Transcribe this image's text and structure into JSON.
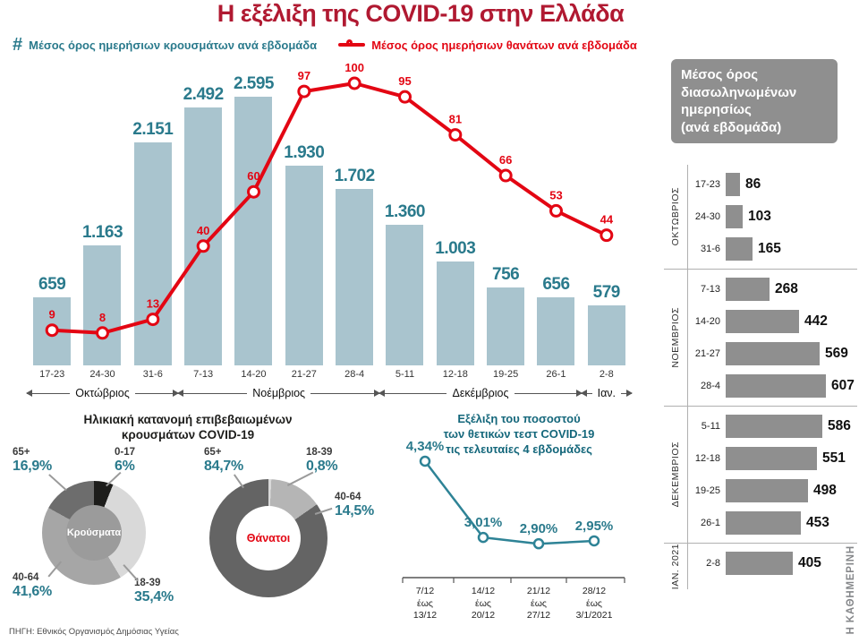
{
  "title": "Η εξέλιξη της COVID-19 στην Ελλάδα",
  "legend": {
    "cases_symbol": "#"
  },
  "source": "ΠΗΓΗ: Εθνικός Οργανισμός Δημόσιας Υγείας",
  "brand": "Η ΚΑΘΗΜΕΡΙΝΗ",
  "colors": {
    "title_red": "#b01931",
    "teal": "#2a7a8c",
    "line_red": "#e30613",
    "bar_fill": "#a9c4ce",
    "panel_gray": "#8f8f8f",
    "dark": "#1d1d1b"
  },
  "chart_data": [
    {
      "type": "bar",
      "name": "weekly-cases-and-deaths",
      "categories": [
        "17-23",
        "24-30",
        "31-6",
        "7-13",
        "14-20",
        "21-27",
        "28-4",
        "5-11",
        "12-18",
        "19-25",
        "26-1",
        "2-8"
      ],
      "series": [
        {
          "name": "cases",
          "type": "bar",
          "title": "Μέσος όρος ημερήσιων κρουσμάτων ανά εβδομάδα",
          "values": [
            659,
            1163,
            2151,
            2492,
            2595,
            1930,
            1702,
            1360,
            1003,
            756,
            656,
            579
          ],
          "value_labels": [
            "659",
            "1.163",
            "2.151",
            "2.492",
            "2.595",
            "1.930",
            "1.702",
            "1.360",
            "1.003",
            "756",
            "656",
            "579"
          ],
          "ylim": [
            0,
            2700
          ]
        },
        {
          "name": "deaths",
          "type": "line",
          "title": "Μέσος όρος ημερήσιων θανάτων ανά εβδομάδα",
          "values": [
            9,
            8,
            13,
            40,
            60,
            97,
            100,
            95,
            81,
            66,
            53,
            44
          ],
          "ylim": [
            0,
            110
          ]
        }
      ],
      "months": [
        {
          "label": "Οκτώβριος",
          "span": 3
        },
        {
          "label": "Νοέμβριος",
          "span": 4
        },
        {
          "label": "Δεκέμβριος",
          "span": 4
        },
        {
          "label": "Ιαν.",
          "span": 1
        }
      ],
      "grid": false,
      "legend_position": "top"
    },
    {
      "type": "pie",
      "name": "age-distribution-cases",
      "title": "Ηλικιακή κατανομή επιβεβαιωμένων\nκρουσμάτων COVID-19",
      "center_label": "Κρούσματα",
      "segments": [
        {
          "group": "0-17",
          "pct": "6%",
          "value": 6,
          "color": "#1d1d1b"
        },
        {
          "group": "18-39",
          "pct": "35,4%",
          "value": 35.4,
          "color": "#d9d9d9"
        },
        {
          "group": "40-64",
          "pct": "41,6%",
          "value": 41.6,
          "color": "#a6a6a6"
        },
        {
          "group": "65+",
          "pct": "16,9%",
          "value": 16.9,
          "color": "#6d6d6d"
        }
      ]
    },
    {
      "type": "pie",
      "name": "age-distribution-deaths",
      "center_label": "Θάνατοι",
      "segments": [
        {
          "group": "18-39",
          "pct": "0,8%",
          "value": 0.8,
          "color": "#d9d9d9"
        },
        {
          "group": "40-64",
          "pct": "14,5%",
          "value": 14.5,
          "color": "#b5b5b5"
        },
        {
          "group": "65+",
          "pct": "84,7%",
          "value": 84.7,
          "color": "#646464"
        }
      ]
    },
    {
      "type": "line",
      "name": "test-positivity",
      "title": "Εξέλιξη του ποσοστού\nτων θετικών τεστ COVID-19\nτις τελευταίες 4 εβδομάδες",
      "ylim": [
        2.5,
        4.5
      ],
      "points": [
        {
          "label": "4,34%",
          "value": 4.34,
          "x_label": "7/12\nέως\n13/12"
        },
        {
          "label": "3,01%",
          "value": 3.01,
          "x_label": "14/12\nέως\n20/12"
        },
        {
          "label": "2,90%",
          "value": 2.9,
          "x_label": "21/12\nέως\n27/12"
        },
        {
          "label": "2,95%",
          "value": 2.95,
          "x_label": "28/12\nέως\n3/1/2021"
        }
      ]
    },
    {
      "type": "bar",
      "orientation": "horizontal",
      "name": "intubated-daily-average",
      "title": "Μέσος όρος\nδιασωληνωμένων\nημερησίως\n(ανά εβδομάδα)",
      "xmax": 607,
      "groups": [
        {
          "month": "ΟΚΤΩΒΡΙΟΣ",
          "rows": [
            {
              "week": "17-23",
              "value": 86
            },
            {
              "week": "24-30",
              "value": 103
            },
            {
              "week": "31-6",
              "value": 165
            }
          ]
        },
        {
          "month": "ΝΟΕΜΒΡΙΟΣ",
          "rows": [
            {
              "week": "7-13",
              "value": 268
            },
            {
              "week": "14-20",
              "value": 442
            },
            {
              "week": "21-27",
              "value": 569
            },
            {
              "week": "28-4",
              "value": 607
            }
          ]
        },
        {
          "month": "ΔΕΚΕΜΒΡΙΟΣ",
          "rows": [
            {
              "week": "5-11",
              "value": 586
            },
            {
              "week": "12-18",
              "value": 551
            },
            {
              "week": "19-25",
              "value": 498
            },
            {
              "week": "26-1",
              "value": 453
            }
          ]
        },
        {
          "month": "ΙΑΝ. 2021",
          "rows": [
            {
              "week": "2-8",
              "value": 405
            }
          ]
        }
      ]
    }
  ]
}
